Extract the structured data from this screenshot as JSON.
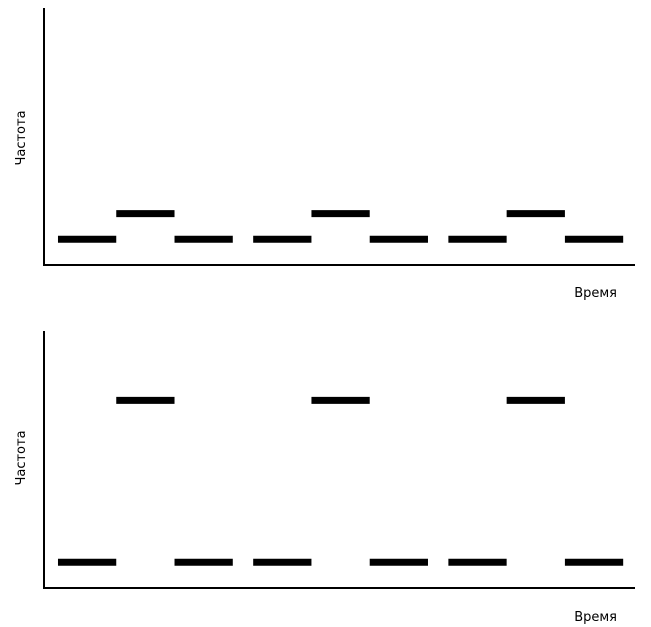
{
  "chart_data": [
    {
      "type": "line",
      "xlabel": "Время",
      "ylabel": "Частота",
      "segments": [
        {
          "x": [
            0,
            1
          ],
          "y": 1
        },
        {
          "x": [
            1,
            2
          ],
          "y": 2
        },
        {
          "x": [
            2,
            3
          ],
          "y": 1
        },
        {
          "x": [
            3.35,
            4.35
          ],
          "y": 1
        },
        {
          "x": [
            4.35,
            5.35
          ],
          "y": 2
        },
        {
          "x": [
            5.35,
            6.35
          ],
          "y": 1
        },
        {
          "x": [
            6.7,
            7.7
          ],
          "y": 1
        },
        {
          "x": [
            7.7,
            8.7
          ],
          "y": 2
        },
        {
          "x": [
            8.7,
            9.7
          ],
          "y": 1
        }
      ],
      "xlim": [
        -0.24,
        9.92
      ],
      "ylim": [
        0,
        10
      ],
      "grid": false,
      "legend": "none"
    },
    {
      "type": "line",
      "xlabel": "Время",
      "ylabel": "Частота",
      "segments": [
        {
          "x": [
            0,
            1
          ],
          "y": 1
        },
        {
          "x": [
            1,
            2
          ],
          "y": 7.3
        },
        {
          "x": [
            2,
            3
          ],
          "y": 1
        },
        {
          "x": [
            3.35,
            4.35
          ],
          "y": 1
        },
        {
          "x": [
            4.35,
            5.35
          ],
          "y": 7.3
        },
        {
          "x": [
            5.35,
            6.35
          ],
          "y": 1
        },
        {
          "x": [
            6.7,
            7.7
          ],
          "y": 1
        },
        {
          "x": [
            7.7,
            8.7
          ],
          "y": 7.3
        },
        {
          "x": [
            8.7,
            9.7
          ],
          "y": 1
        }
      ],
      "xlim": [
        -0.24,
        9.92
      ],
      "ylim": [
        0,
        10
      ],
      "grid": false,
      "legend": "none"
    }
  ]
}
